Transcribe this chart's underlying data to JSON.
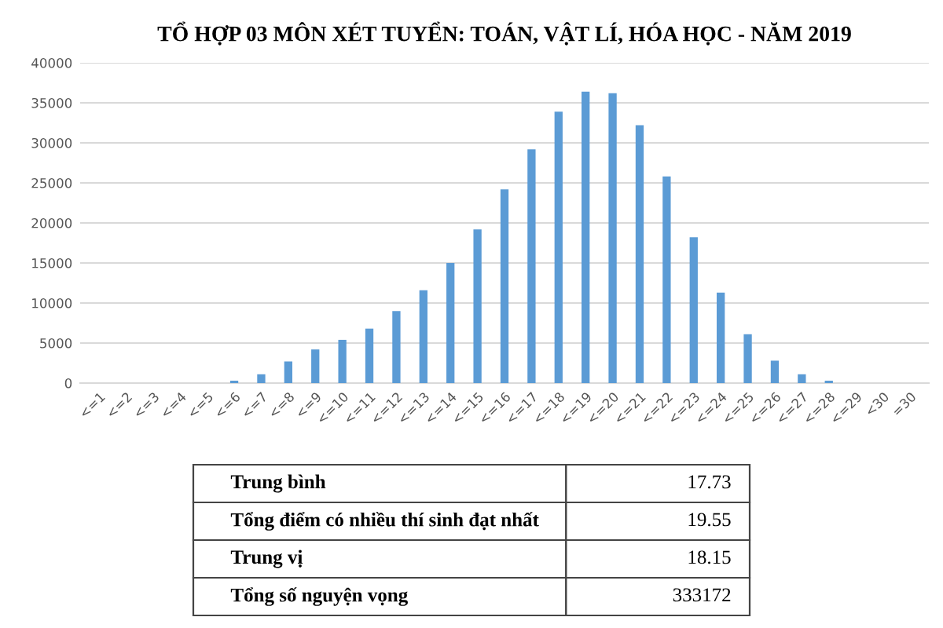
{
  "chart_data": {
    "type": "bar",
    "title": "TỔ HỢP 03 MÔN XÉT TUYỂN: TOÁN, VẬT LÍ, HÓA HỌC - NĂM 2019",
    "categories": [
      "<=1",
      "<=2",
      "<=3",
      "<=4",
      "<=5",
      "<=6",
      "<=7",
      "<=8",
      "<=9",
      "<=10",
      "<=11",
      "<=12",
      "<=13",
      "<=14",
      "<=15",
      "<=16",
      "<=17",
      "<=18",
      "<=19",
      "<=20",
      "<=21",
      "<=22",
      "<=23",
      "<=24",
      "<=25",
      "<=26",
      "<=27",
      "<=28",
      "<=29",
      "<30",
      "=30"
    ],
    "values": [
      0,
      0,
      0,
      0,
      0,
      300,
      1100,
      2700,
      4200,
      5400,
      6800,
      9000,
      11600,
      15000,
      19200,
      24200,
      29200,
      33900,
      36400,
      36200,
      32200,
      25800,
      18200,
      11300,
      6100,
      2800,
      1100,
      300,
      0,
      0,
      0
    ],
    "color": "#5b9bd5",
    "ylim": [
      0,
      40000
    ],
    "yticks": [
      0,
      5000,
      10000,
      15000,
      20000,
      25000,
      30000,
      35000,
      40000
    ],
    "grid": "y",
    "annotations": [
      "Trung bình",
      "17.73",
      "Tổng điểm có nhiều thí sinh đạt nhất",
      "19.55",
      "Trung vị",
      "18.15",
      "Tổng số nguyện vọng",
      "333172"
    ]
  }
}
